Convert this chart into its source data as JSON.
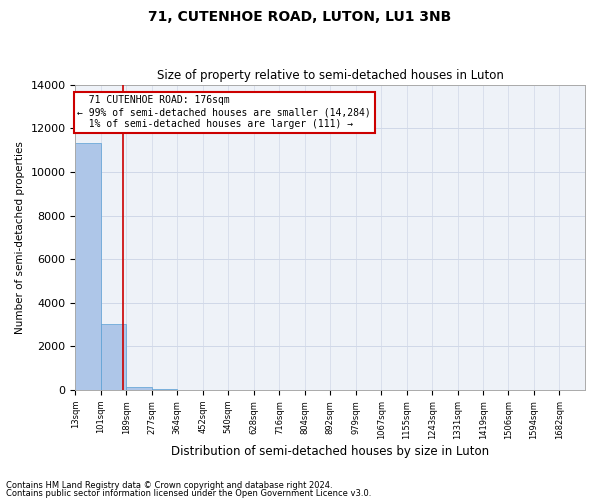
{
  "title": "71, CUTENHOE ROAD, LUTON, LU1 3NB",
  "subtitle": "Size of property relative to semi-detached houses in Luton",
  "xlabel": "Distribution of semi-detached houses by size in Luton",
  "ylabel": "Number of semi-detached properties",
  "property_size": 176,
  "property_label": "71 CUTENHOE ROAD: 176sqm",
  "pct_smaller": 99,
  "count_smaller": 14284,
  "pct_larger": 1,
  "count_larger": 111,
  "bar_edges": [
    13,
    101,
    189,
    277,
    364,
    452,
    540,
    628,
    716,
    804,
    892,
    979,
    1067,
    1155,
    1243,
    1331,
    1419,
    1506,
    1594,
    1682,
    1770
  ],
  "bar_heights": [
    11300,
    3050,
    160,
    45,
    20,
    10,
    5,
    5,
    3,
    3,
    2,
    2,
    1,
    1,
    1,
    1,
    1,
    1,
    0,
    0
  ],
  "bar_color": "#aec6e8",
  "bar_edge_color": "#5a9fd4",
  "grid_color": "#d0d8e8",
  "red_line_color": "#cc0000",
  "annotation_box_color": "#cc0000",
  "ylim": [
    0,
    14000
  ],
  "yticks": [
    0,
    2000,
    4000,
    6000,
    8000,
    10000,
    12000,
    14000
  ],
  "footer_line1": "Contains HM Land Registry data © Crown copyright and database right 2024.",
  "footer_line2": "Contains public sector information licensed under the Open Government Licence v3.0.",
  "bg_color": "#eef2f8"
}
